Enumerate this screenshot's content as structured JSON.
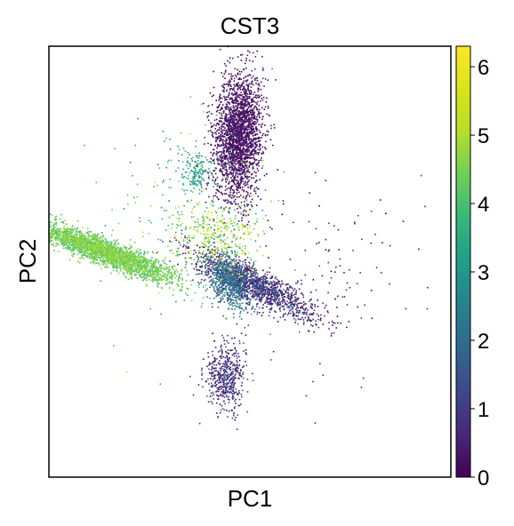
{
  "chart_data": {
    "type": "scatter",
    "title": "CST3",
    "xlabel": "PC1",
    "ylabel": "PC2",
    "xticks": [],
    "yticks": [],
    "grid": false,
    "legend": "colorbar-right",
    "colormap": "viridis",
    "color_value_label": "CST3",
    "colorbar": {
      "min": 0,
      "max": 6.3,
      "ticks": [
        0,
        1,
        2,
        3,
        4,
        5,
        6
      ]
    },
    "axis_ranges": {
      "x": [
        -4,
        14
      ],
      "y": [
        -7,
        6
      ]
    },
    "clusters": [
      {
        "cells": 2300,
        "center": [
          4.5,
          3.3
        ],
        "spread": [
          0.55,
          0.95
        ],
        "corr": 0.15,
        "value_mean": 0.15,
        "value_sd": 0.25
      },
      {
        "cells": 2700,
        "center": [
          -1.5,
          -0.2
        ],
        "spread": [
          1.6,
          0.45
        ],
        "corr": -0.9,
        "value_mean": 4.3,
        "value_sd": 0.35
      },
      {
        "cells": 1400,
        "center": [
          5.2,
          -1.2
        ],
        "spread": [
          1.35,
          0.5
        ],
        "corr": -0.85,
        "value_mean": 0.6,
        "value_sd": 0.7
      },
      {
        "cells": 650,
        "center": [
          4.1,
          -1.1
        ],
        "spread": [
          0.5,
          0.45
        ],
        "corr": -0.4,
        "value_mean": 2.0,
        "value_sd": 0.5
      },
      {
        "cells": 500,
        "center": [
          3.9,
          -4.0
        ],
        "spread": [
          0.45,
          0.5
        ],
        "corr": 0.0,
        "value_mean": 0.7,
        "value_sd": 0.55
      },
      {
        "cells": 140,
        "center": [
          2.6,
          2.2
        ],
        "spread": [
          0.3,
          0.28
        ],
        "corr": 0.0,
        "value_mean": 3.2,
        "value_sd": 0.35
      },
      {
        "cells": 320,
        "center": [
          3.7,
          0.3
        ],
        "spread": [
          0.9,
          0.5
        ],
        "corr": 0.0,
        "value_mean": 4.8,
        "value_sd": 0.8
      },
      {
        "cells": 260,
        "center": [
          2.2,
          1.0
        ],
        "spread": [
          1.8,
          1.4
        ],
        "corr": 0.0,
        "value_mean": 3.8,
        "value_sd": 0.8
      },
      {
        "cells": 120,
        "center": [
          8.5,
          -0.8
        ],
        "spread": [
          2.0,
          1.5
        ],
        "corr": 0.0,
        "value_mean": 0.4,
        "value_sd": 0.5
      }
    ]
  }
}
